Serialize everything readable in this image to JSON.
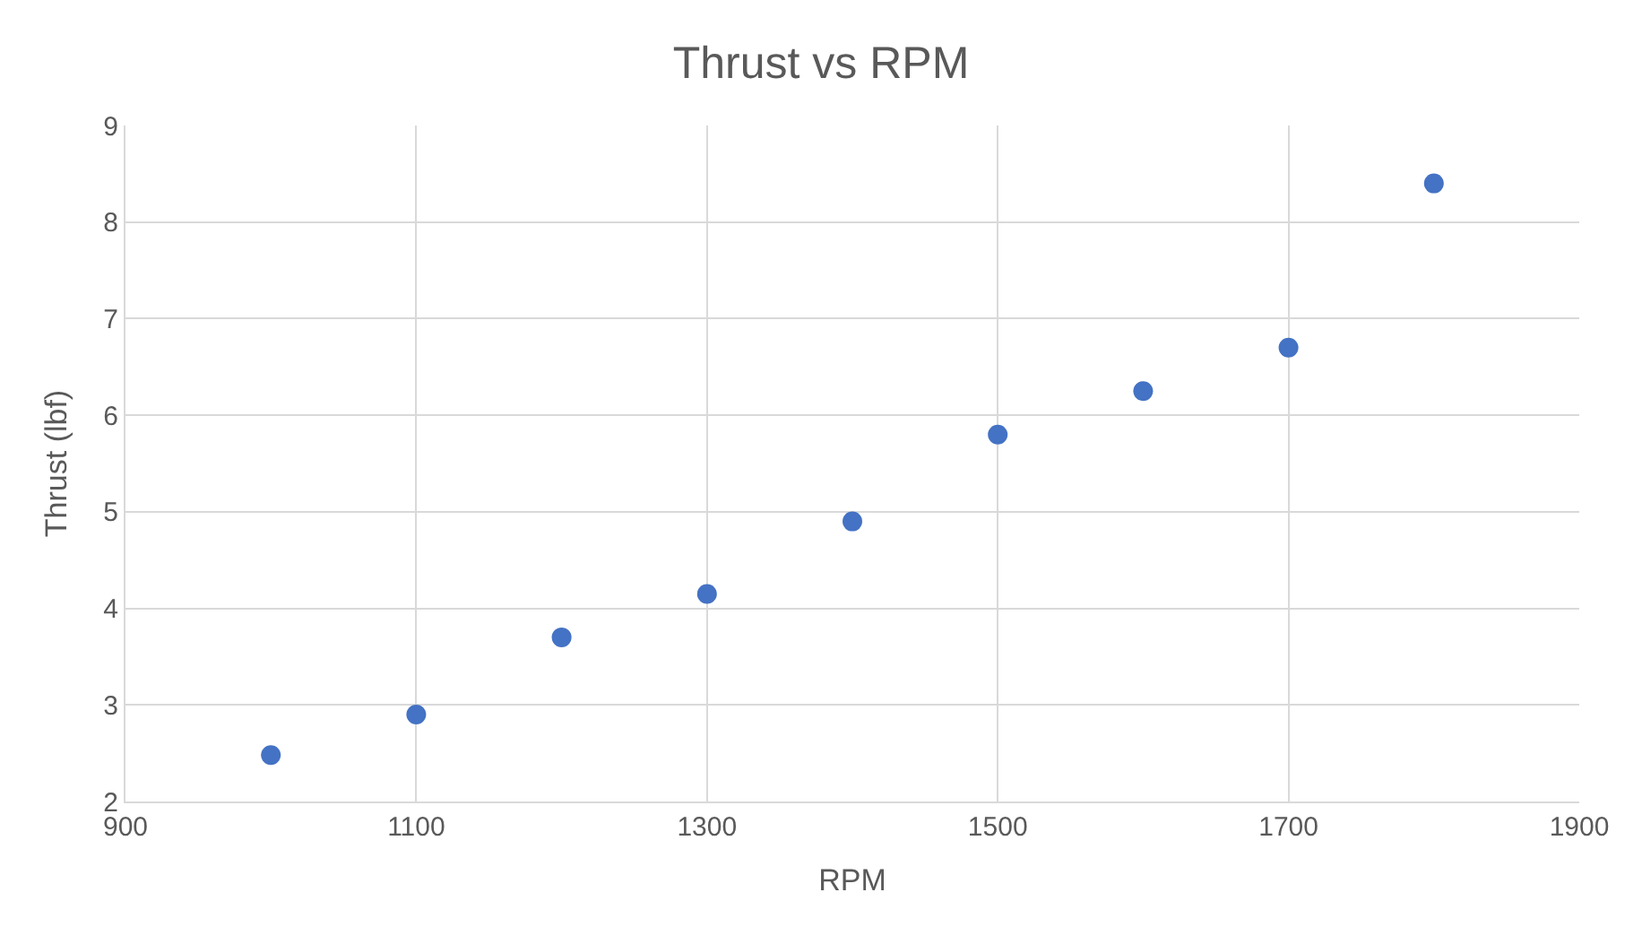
{
  "chart_data": {
    "type": "scatter",
    "title": "Thrust vs RPM",
    "xlabel": "RPM",
    "ylabel": "Thrust (lbf)",
    "x": [
      1000,
      1100,
      1200,
      1300,
      1400,
      1500,
      1600,
      1700,
      1800
    ],
    "series": [
      {
        "color": "#4472c4",
        "values": [
          2.48,
          2.9,
          3.7,
          4.15,
          4.9,
          5.8,
          6.25,
          6.7,
          8.4
        ]
      }
    ],
    "xlim": [
      900,
      1900
    ],
    "xticks": [
      900,
      1100,
      1300,
      1500,
      1700,
      1900
    ],
    "ylim": [
      2,
      9
    ],
    "yticks": [
      2,
      3,
      4,
      5,
      6,
      7,
      8,
      9
    ],
    "grid": true,
    "marker": "circle"
  }
}
